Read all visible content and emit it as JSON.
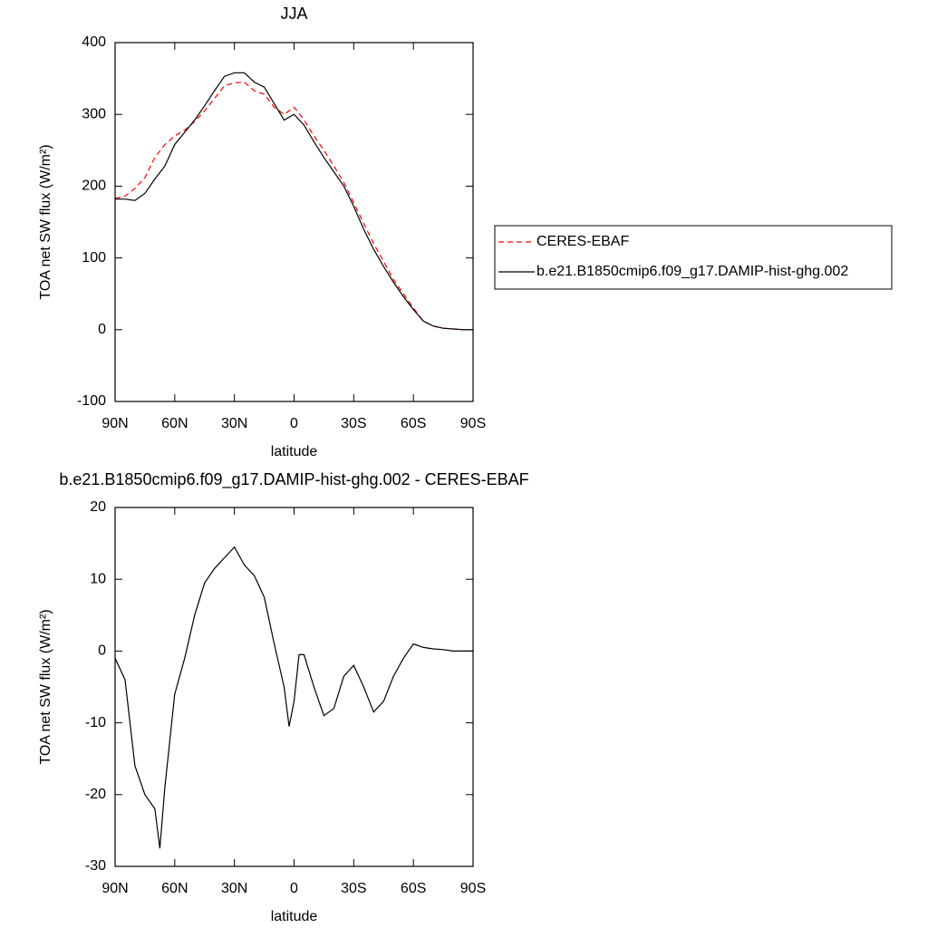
{
  "chart_data": [
    {
      "type": "line",
      "title": "JJA",
      "xlabel": "latitude",
      "ylabel": "TOA net SW flux (W/m²)",
      "x": [
        90,
        85,
        80,
        75,
        70,
        65,
        60,
        55,
        50,
        45,
        40,
        35,
        30,
        25,
        20,
        15,
        10,
        5,
        0,
        -5,
        -10,
        -15,
        -20,
        -25,
        -30,
        -35,
        -40,
        -45,
        -50,
        -55,
        -60,
        -65,
        -70,
        -75,
        -80,
        -85,
        -90
      ],
      "xlim": [
        90,
        -90
      ],
      "xticks": [
        {
          "value": 90,
          "label": "90N"
        },
        {
          "value": 60,
          "label": "60N"
        },
        {
          "value": 30,
          "label": "30N"
        },
        0,
        {
          "value": -30,
          "label": "30S"
        },
        {
          "value": -60,
          "label": "60S"
        },
        {
          "value": -90,
          "label": "90S"
        }
      ],
      "ylim": [
        -100,
        400
      ],
      "yticks": [
        -100,
        0,
        100,
        200,
        300,
        400
      ],
      "legend": "right",
      "series": [
        {
          "name": "CERES-EBAF",
          "color": "#ff0000",
          "dash": true,
          "values": [
            183,
            186,
            197,
            212,
            240,
            258,
            270,
            278,
            290,
            305,
            322,
            340,
            344,
            345,
            333,
            328,
            310,
            300,
            310,
            292,
            270,
            250,
            228,
            205,
            177,
            148,
            120,
            95,
            70,
            50,
            30,
            12,
            5,
            2,
            1,
            0,
            0
          ]
        },
        {
          "name": "b.e21.B1850cmip6.f09_g17.DAMIP-hist-ghg.002",
          "color": "#000000",
          "dash": false,
          "values": [
            182,
            182,
            180,
            190,
            210,
            228,
            258,
            275,
            292,
            312,
            333,
            353,
            358,
            358,
            345,
            338,
            315,
            292,
            300,
            285,
            262,
            240,
            220,
            200,
            172,
            140,
            112,
            88,
            66,
            46,
            28,
            12,
            5,
            2,
            1,
            0,
            0
          ]
        }
      ]
    },
    {
      "type": "line",
      "title": "b.e21.B1850cmip6.f09_g17.DAMIP-hist-ghg.002 - CERES-EBAF",
      "xlabel": "latitude",
      "ylabel": "TOA net SW flux (W/m²)",
      "x": [
        90,
        85,
        80,
        75,
        70,
        67.5,
        65,
        60,
        55,
        50,
        45,
        40,
        35,
        30,
        25,
        20,
        15,
        10,
        5,
        2.5,
        0,
        -2.5,
        -5,
        -10,
        -15,
        -20,
        -25,
        -30,
        -35,
        -40,
        -45,
        -50,
        -55,
        -60,
        -65,
        -70,
        -75,
        -80,
        -90
      ],
      "xlim": [
        90,
        -90
      ],
      "xticks": [
        {
          "value": 90,
          "label": "90N"
        },
        {
          "value": 60,
          "label": "60N"
        },
        {
          "value": 30,
          "label": "30N"
        },
        0,
        {
          "value": -30,
          "label": "30S"
        },
        {
          "value": -60,
          "label": "60S"
        },
        {
          "value": -90,
          "label": "90S"
        }
      ],
      "ylim": [
        -30,
        20
      ],
      "yticks": [
        -30,
        -20,
        -10,
        0,
        10,
        20
      ],
      "series": [
        {
          "color": "#000000",
          "dash": false,
          "values": [
            -1,
            -4,
            -16,
            -20,
            -22,
            -27.5,
            -19,
            -6,
            -1,
            5,
            9.5,
            11.5,
            13,
            14.5,
            12,
            10.5,
            7.5,
            1,
            -5,
            -10.5,
            -7,
            -0.5,
            -0.5,
            -5,
            -9,
            -8,
            -3.5,
            -2,
            -5,
            -8.5,
            -7,
            -3.5,
            -1,
            1,
            0.5,
            0.3,
            0.2,
            0,
            0
          ]
        }
      ]
    }
  ]
}
